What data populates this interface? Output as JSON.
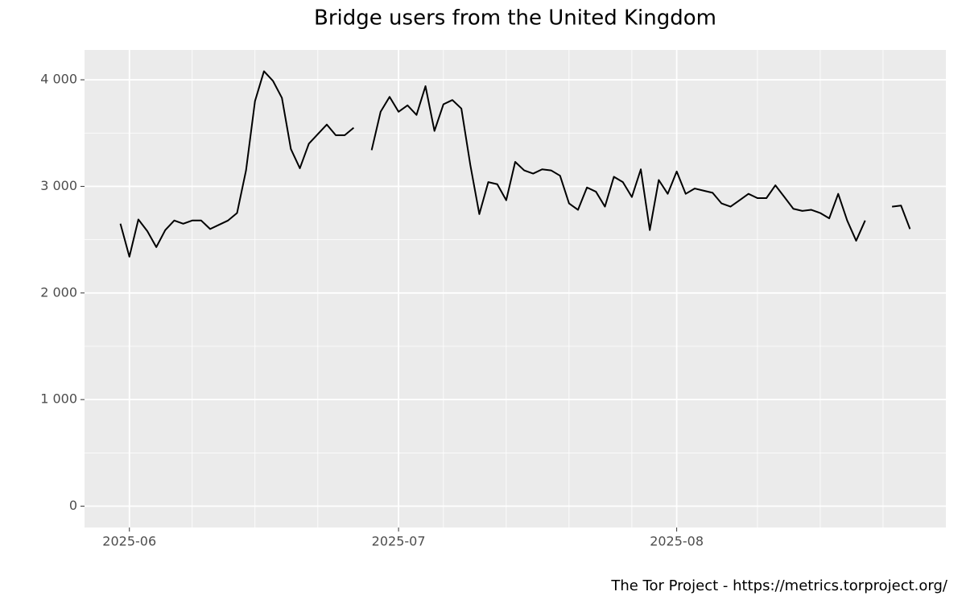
{
  "chart_data": {
    "type": "line",
    "title": "Bridge users from the United Kingdom",
    "caption": "The Tor Project - https://metrics.torproject.org/",
    "x": [
      "2025-05-31",
      "2025-06-01",
      "2025-06-02",
      "2025-06-03",
      "2025-06-04",
      "2025-06-05",
      "2025-06-06",
      "2025-06-07",
      "2025-06-08",
      "2025-06-09",
      "2025-06-10",
      "2025-06-11",
      "2025-06-12",
      "2025-06-13",
      "2025-06-14",
      "2025-06-15",
      "2025-06-16",
      "2025-06-17",
      "2025-06-18",
      "2025-06-19",
      "2025-06-20",
      "2025-06-21",
      "2025-06-22",
      "2025-06-23",
      "2025-06-24",
      "2025-06-25",
      "2025-06-26",
      "2025-06-27",
      "2025-06-28",
      "2025-06-29",
      "2025-06-30",
      "2025-07-01",
      "2025-07-02",
      "2025-07-03",
      "2025-07-04",
      "2025-07-05",
      "2025-07-06",
      "2025-07-07",
      "2025-07-08",
      "2025-07-09",
      "2025-07-10",
      "2025-07-11",
      "2025-07-12",
      "2025-07-13",
      "2025-07-14",
      "2025-07-15",
      "2025-07-16",
      "2025-07-17",
      "2025-07-18",
      "2025-07-19",
      "2025-07-20",
      "2025-07-21",
      "2025-07-22",
      "2025-07-23",
      "2025-07-24",
      "2025-07-25",
      "2025-07-26",
      "2025-07-27",
      "2025-07-28",
      "2025-07-29",
      "2025-07-30",
      "2025-07-31",
      "2025-08-01",
      "2025-08-02",
      "2025-08-03",
      "2025-08-04",
      "2025-08-05",
      "2025-08-06",
      "2025-08-07",
      "2025-08-08",
      "2025-08-09",
      "2025-08-10",
      "2025-08-11",
      "2025-08-12",
      "2025-08-13",
      "2025-08-14",
      "2025-08-15",
      "2025-08-16",
      "2025-08-17",
      "2025-08-18",
      "2025-08-19",
      "2025-08-20",
      "2025-08-21",
      "2025-08-22",
      "2025-08-23",
      "2025-08-24",
      "2025-08-25",
      "2025-08-26",
      "2025-08-27"
    ],
    "series": [
      {
        "name": "users",
        "color": "#000000",
        "values": [
          2650,
          2340,
          2690,
          2580,
          2430,
          2590,
          2680,
          2650,
          2680,
          2680,
          2600,
          2640,
          2680,
          2750,
          3150,
          3800,
          4080,
          3990,
          3830,
          3350,
          3170,
          3400,
          3490,
          3580,
          3480,
          3480,
          3550,
          null,
          3340,
          3700,
          3840,
          3700,
          3760,
          3670,
          3940,
          3520,
          3770,
          3810,
          3730,
          3200,
          2740,
          3040,
          3020,
          2870,
          3230,
          3150,
          3120,
          3160,
          3150,
          3100,
          2840,
          2780,
          2990,
          2950,
          2810,
          3090,
          3040,
          2900,
          3160,
          2590,
          3060,
          2930,
          3140,
          2930,
          2980,
          2960,
          2940,
          2840,
          2810,
          2870,
          2930,
          2890,
          2890,
          3010,
          2900,
          2790,
          2770,
          2780,
          2750,
          2700,
          2930,
          2680,
          2490,
          2680,
          null,
          null,
          2810,
          2820,
          2600
        ]
      }
    ],
    "xlim": [
      "2025-05-27",
      "2025-08-31"
    ],
    "xticks": [
      {
        "value": "2025-06-01",
        "label": "2025-06"
      },
      {
        "value": "2025-07-01",
        "label": "2025-07"
      },
      {
        "value": "2025-08-01",
        "label": "2025-08"
      }
    ],
    "x_minor_ticks": [
      "2025-06-08",
      "2025-06-15",
      "2025-06-22",
      "2025-07-06",
      "2025-07-13",
      "2025-07-20",
      "2025-07-27",
      "2025-08-10",
      "2025-08-17",
      "2025-08-24"
    ],
    "ylim": [
      -200,
      4280
    ],
    "yticks": [
      0,
      {
        "value": 1000,
        "label": "1 000"
      },
      {
        "value": 2000,
        "label": "2 000"
      },
      {
        "value": 3000,
        "label": "3 000"
      },
      {
        "value": 4000,
        "label": "4 000"
      }
    ],
    "y_minor_ticks": [
      500,
      1500,
      2500,
      3500
    ],
    "grid": true
  }
}
